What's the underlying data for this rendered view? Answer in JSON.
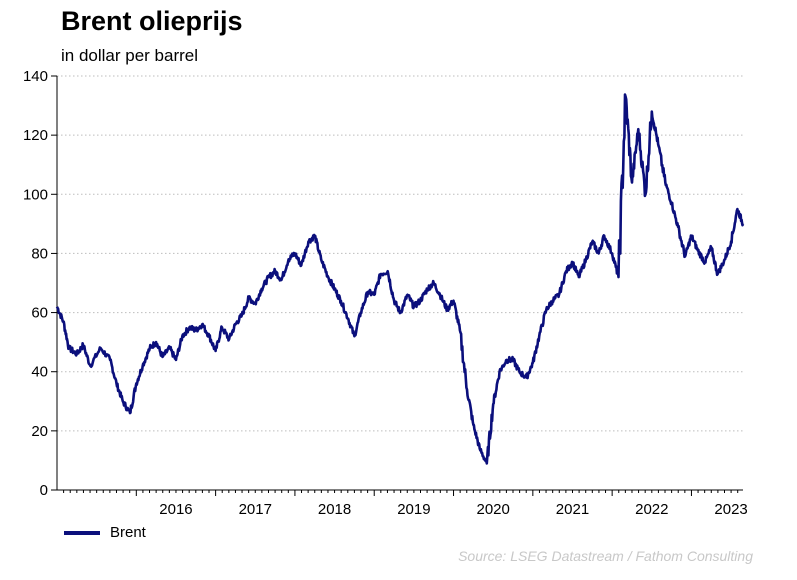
{
  "title": "Brent olieprijs",
  "subtitle": "in dollar per barrel",
  "source": "Source: LSEG Datastream / Fathom Consulting",
  "colors": {
    "series": "#0b0f7c",
    "grid": "#bdbdbd",
    "axis": "#000000"
  },
  "chart_data": {
    "type": "line",
    "title": "Brent olieprijs",
    "subtitle": "in dollar per barrel",
    "xlabel": "",
    "ylabel": "",
    "ylim": [
      0,
      140
    ],
    "yticks": [
      0,
      20,
      40,
      60,
      80,
      100,
      120,
      140
    ],
    "xlim": [
      2015.0,
      2023.65
    ],
    "xticks": [
      "2016",
      "2017",
      "2018",
      "2019",
      "2020",
      "2021",
      "2022",
      "2023"
    ],
    "grid": "horizontal dotted",
    "legend": "bottom-left",
    "series": [
      {
        "name": "Brent",
        "x": [
          2015.0,
          2015.08,
          2015.15,
          2015.25,
          2015.33,
          2015.42,
          2015.55,
          2015.67,
          2015.75,
          2015.83,
          2015.92,
          2016.0,
          2016.08,
          2016.17,
          2016.25,
          2016.33,
          2016.42,
          2016.5,
          2016.58,
          2016.67,
          2016.75,
          2016.83,
          2016.92,
          2017.0,
          2017.08,
          2017.17,
          2017.25,
          2017.33,
          2017.42,
          2017.5,
          2017.58,
          2017.67,
          2017.75,
          2017.83,
          2017.92,
          2018.0,
          2018.08,
          2018.17,
          2018.25,
          2018.33,
          2018.42,
          2018.5,
          2018.58,
          2018.67,
          2018.75,
          2018.83,
          2018.92,
          2019.0,
          2019.08,
          2019.17,
          2019.25,
          2019.33,
          2019.42,
          2019.5,
          2019.58,
          2019.67,
          2019.75,
          2019.83,
          2019.92,
          2020.0,
          2020.08,
          2020.17,
          2020.25,
          2020.33,
          2020.42,
          2020.5,
          2020.58,
          2020.67,
          2020.75,
          2020.83,
          2020.92,
          2021.0,
          2021.08,
          2021.17,
          2021.25,
          2021.33,
          2021.42,
          2021.5,
          2021.58,
          2021.67,
          2021.75,
          2021.83,
          2021.9,
          2022.0,
          2022.08,
          2022.17,
          2022.25,
          2022.33,
          2022.42,
          2022.5,
          2022.58,
          2022.67,
          2022.75,
          2022.83,
          2022.92,
          2023.0,
          2023.08,
          2023.17,
          2023.25,
          2023.33,
          2023.42,
          2023.5,
          2023.58,
          2023.65
        ],
        "y": [
          62,
          57,
          48,
          46,
          49,
          42,
          48,
          44,
          36,
          30,
          26,
          36,
          42,
          48,
          50,
          45,
          48,
          44,
          52,
          55,
          54,
          56,
          52,
          47,
          55,
          51,
          56,
          59,
          65,
          63,
          68,
          72,
          74,
          71,
          78,
          80,
          76,
          84,
          86,
          78,
          72,
          68,
          64,
          58,
          52,
          60,
          67,
          66,
          73,
          74,
          64,
          60,
          66,
          62,
          64,
          68,
          70,
          66,
          61,
          64,
          54,
          34,
          22,
          14,
          9,
          29,
          40,
          44,
          44,
          40,
          38,
          43,
          52,
          61,
          64,
          66,
          74,
          77,
          72,
          78,
          84,
          80,
          86,
          80,
          72,
          133,
          104,
          122,
          100,
          128,
          117,
          104,
          97,
          89,
          79,
          86,
          81,
          77,
          82,
          73,
          78,
          84,
          95,
          90
        ]
      }
    ]
  },
  "legend": {
    "label": "Brent"
  }
}
